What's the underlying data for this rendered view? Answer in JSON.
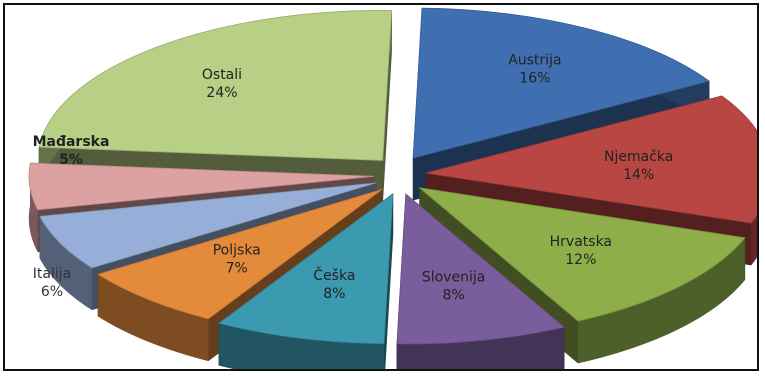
{
  "chart_data": {
    "type": "pie",
    "title": "",
    "three_d": true,
    "exploded": true,
    "categories": [
      "Austrija",
      "Njemačka",
      "Hrvatska",
      "Slovenija",
      "Češka",
      "Poljska",
      "Italija",
      "Mađarska",
      "Ostali"
    ],
    "values": [
      16,
      14,
      12,
      8,
      8,
      7,
      6,
      5,
      24
    ],
    "labels": [
      "16%",
      "14%",
      "12%",
      "8%",
      "8%",
      "7%",
      "6%",
      "5%",
      "24%"
    ],
    "colors": [
      "#3f6fb0",
      "#b84744",
      "#8eae4a",
      "#7a5d9c",
      "#3b9ab0",
      "#e48a3b",
      "#97afd8",
      "#dca1a1",
      "#b8cf86"
    ]
  }
}
